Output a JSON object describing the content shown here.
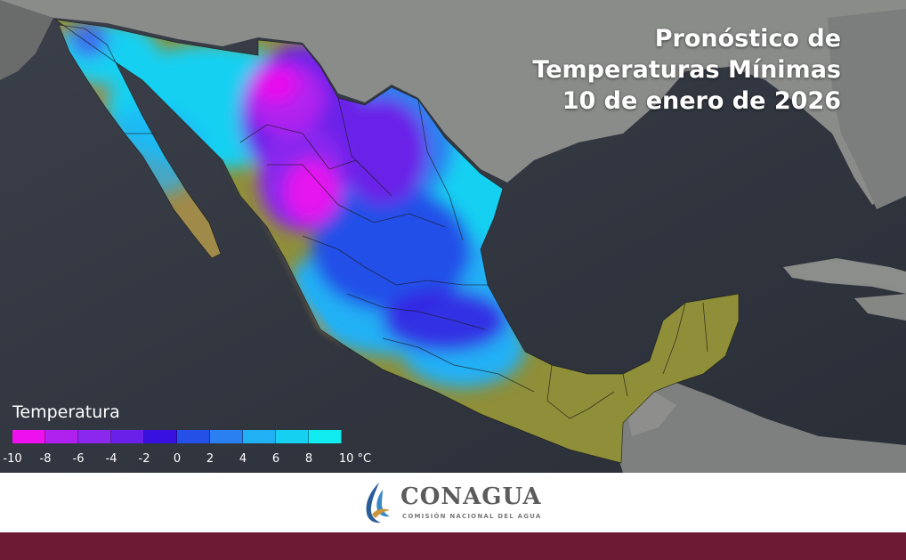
{
  "title": {
    "line1": "Pronóstico de",
    "line2": "Temperaturas Mínimas",
    "line3": "10 de enero de 2026"
  },
  "legend": {
    "title": "Temperatura",
    "colors": [
      "#ee10ee",
      "#b020ee",
      "#8a28ee",
      "#6a20e8",
      "#3810e0",
      "#2450e8",
      "#2a80f0",
      "#22b0f5",
      "#16d0f2",
      "#10ecf0"
    ],
    "ticks": [
      "-10",
      "-8",
      "-6",
      "-4",
      "-2",
      "0",
      "2",
      "4",
      "6",
      "8",
      "10 °C"
    ]
  },
  "footer": {
    "brand": "CONAGUA",
    "subtitle": "COMISIÓN NACIONAL DEL AGUA",
    "band_color": "#6d1a35"
  }
}
